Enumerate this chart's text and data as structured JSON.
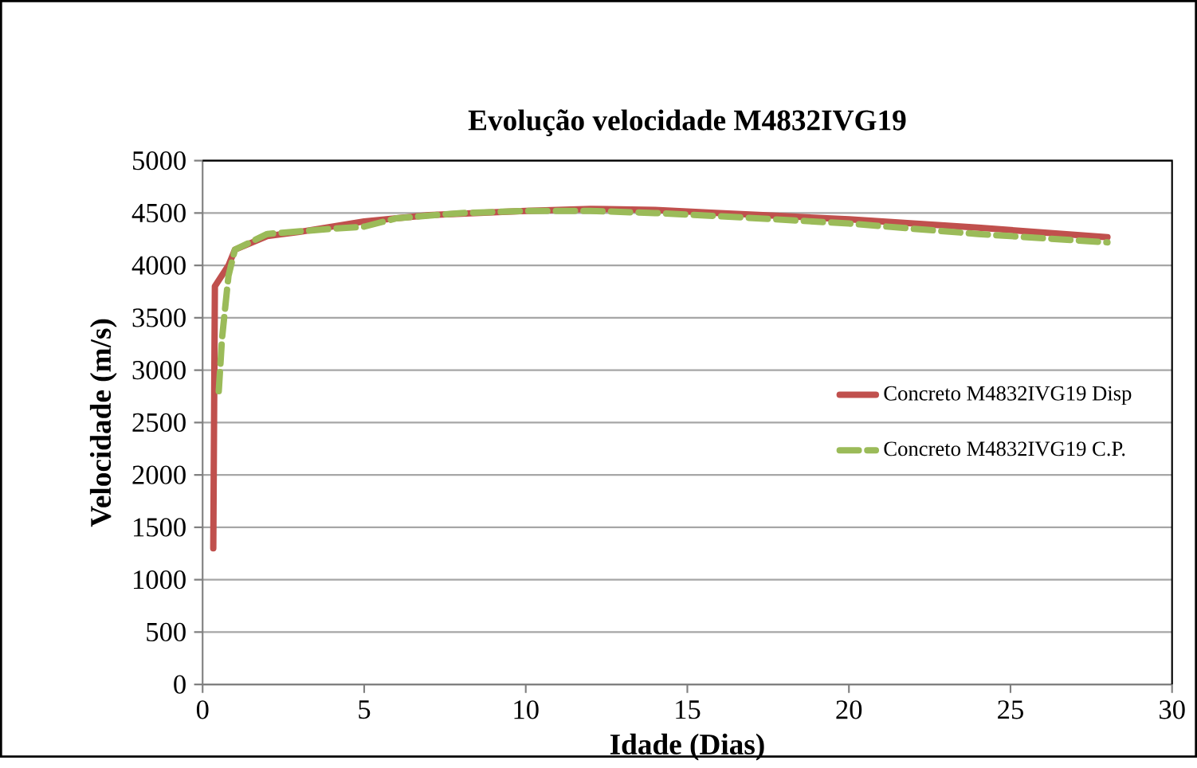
{
  "chart_data": {
    "type": "line",
    "title": "Evolução velocidade M4832IVG19",
    "xlabel": "Idade (Dias)",
    "ylabel": "Velocidade (m/s)",
    "xlim": [
      0,
      30
    ],
    "xticks": [
      0,
      5,
      10,
      15,
      20,
      25,
      30
    ],
    "ylim": [
      0,
      5000
    ],
    "yticks": [
      0,
      500,
      1000,
      1500,
      2000,
      2500,
      3000,
      3500,
      4000,
      4500,
      5000
    ],
    "grid": "y",
    "legend": "right",
    "marker": "none",
    "series": [
      {
        "name": "Concreto M4832IVG19 Disp",
        "color": "#c0504d",
        "line_style": "solid",
        "x": [
          0.33,
          0.38,
          0.8,
          1,
          2,
          3,
          5,
          7,
          10,
          12,
          14,
          16,
          18,
          20,
          24,
          28
        ],
        "values": [
          1300,
          3800,
          4000,
          4150,
          4280,
          4320,
          4420,
          4480,
          4520,
          4540,
          4530,
          4500,
          4470,
          4440,
          4360,
          4270
        ]
      },
      {
        "name": "Concreto M4832IVG19 C.P.",
        "color": "#9bbb59",
        "line_style": "dashed",
        "x": [
          0.5,
          0.6,
          0.8,
          1,
          2,
          4,
          5,
          6,
          8,
          10,
          12,
          14,
          16,
          20,
          24,
          28
        ],
        "values": [
          2800,
          3300,
          3900,
          4150,
          4300,
          4350,
          4370,
          4450,
          4500,
          4520,
          4520,
          4500,
          4470,
          4400,
          4300,
          4220
        ]
      }
    ]
  }
}
